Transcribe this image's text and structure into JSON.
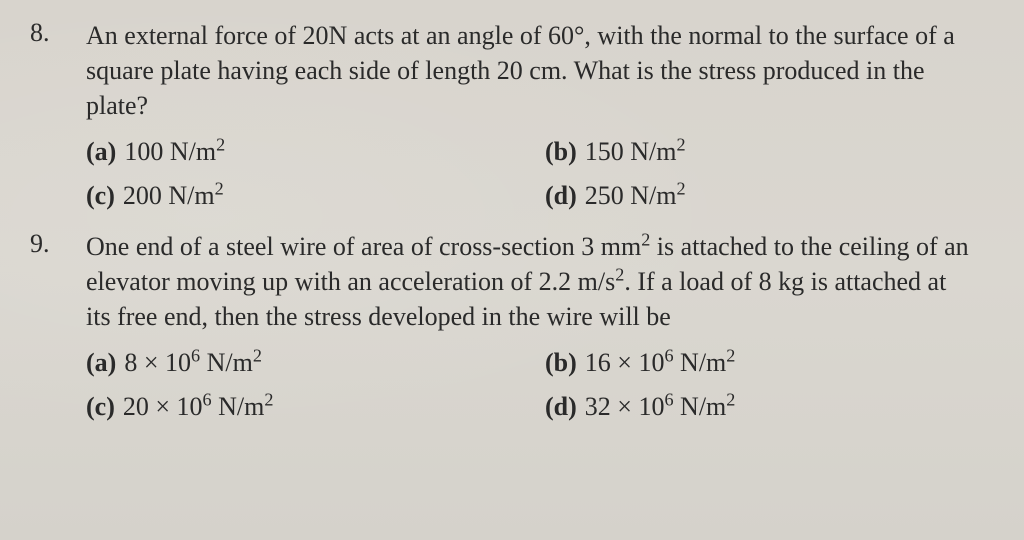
{
  "questions": [
    {
      "number": "8.",
      "text": "An external force of 20N acts at an angle of 60°, with the normal to the surface of a square plate having each side of length 20 cm. What is the stress produced in the plate?",
      "options": {
        "a": {
          "label": "(a)",
          "value": "100 N/m",
          "sup": "2"
        },
        "b": {
          "label": "(b)",
          "value": "150 N/m",
          "sup": "2"
        },
        "c": {
          "label": "(c)",
          "value": "200 N/m",
          "sup": "2"
        },
        "d": {
          "label": "(d)",
          "value": "250 N/m",
          "sup": "2"
        }
      }
    },
    {
      "number": "9.",
      "text_part1": "One end of a steel wire of area of cross-section 3 mm",
      "text_sup1": "2",
      "text_part2": " is attached to the ceiling of an elevator moving up with an acceleration of 2.2 m/s",
      "text_sup2": "2",
      "text_part3": ". If a load of 8 kg is attached at its free end, then the stress developed in the wire will be",
      "options": {
        "a": {
          "label": "(a)",
          "prefix": "8 × 10",
          "sup": "6",
          "suffix": " N/m",
          "sup2": "2"
        },
        "b": {
          "label": "(b)",
          "prefix": "16 × 10",
          "sup": "6",
          "suffix": " N/m",
          "sup2": "2"
        },
        "c": {
          "label": "(c)",
          "prefix": "20 × 10",
          "sup": "6",
          "suffix": " N/m",
          "sup2": "2"
        },
        "d": {
          "label": "(d)",
          "prefix": "32 × 10",
          "sup": "6",
          "suffix": " N/m",
          "sup2": "2"
        }
      }
    }
  ]
}
